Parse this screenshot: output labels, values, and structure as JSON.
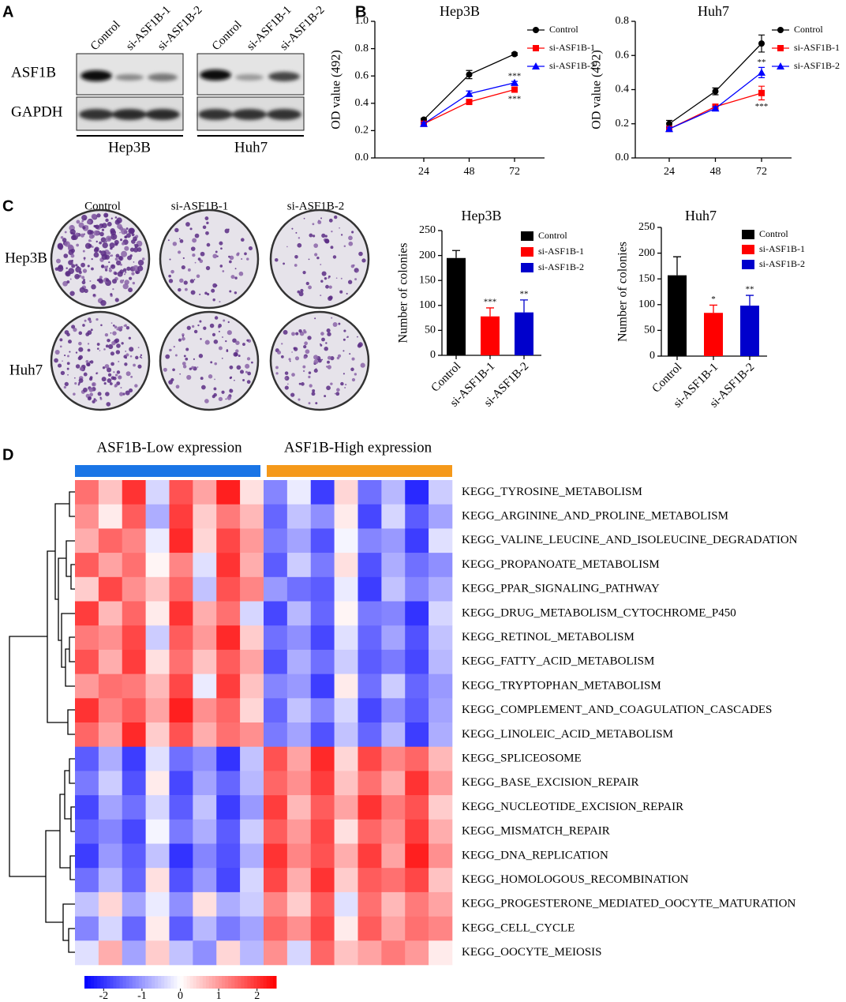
{
  "panel_labels": [
    "A",
    "B",
    "C",
    "D"
  ],
  "blot": {
    "lanes": [
      "Control",
      "si-ASF1B-1",
      "si-ASF1B-2"
    ],
    "proteins": [
      "ASF1B",
      "GAPDH"
    ],
    "cell_lines": [
      "Hep3B",
      "Huh7"
    ]
  },
  "colony": {
    "columns": [
      "Control",
      "si-ASF1B-1",
      "si-ASF1B-2"
    ],
    "rows": [
      "Hep3B",
      "Huh7"
    ]
  },
  "chart_data": [
    {
      "type": "line",
      "title": "Hep3B",
      "y_label": "OD value (492)",
      "categories": [
        "24",
        "48",
        "72"
      ],
      "ylim": [
        0,
        1
      ],
      "yticks": [
        {
          "value": 0,
          "label": "0.0"
        },
        0.2,
        0.4,
        0.6,
        0.8,
        {
          "value": 1,
          "label": "1.0"
        }
      ],
      "legend": "upper right",
      "series": [
        {
          "name": "Control",
          "color": "#000000",
          "marker": "circle",
          "values": [
            0.28,
            0.61,
            0.76
          ],
          "errors": [
            0.01,
            0.03,
            0.01
          ],
          "significance": [
            null,
            null,
            null
          ]
        },
        {
          "name": "si-ASF1B-1",
          "color": "#ff0000",
          "marker": "square",
          "values": [
            0.25,
            0.41,
            0.5
          ],
          "errors": [
            0.01,
            0.01,
            0.02
          ],
          "significance": [
            null,
            null,
            "***"
          ]
        },
        {
          "name": "si-ASF1B-2",
          "color": "#0000ff",
          "marker": "triangle",
          "values": [
            0.25,
            0.47,
            0.55
          ],
          "errors": [
            0.01,
            0.02,
            0.01
          ],
          "significance": [
            null,
            null,
            "***"
          ]
        }
      ]
    },
    {
      "type": "line",
      "title": "Huh7",
      "y_label": "OD value (492)",
      "categories": [
        "24",
        "48",
        "72"
      ],
      "ylim": [
        0,
        0.8
      ],
      "yticks": [
        {
          "value": 0,
          "label": "0.0"
        },
        0.2,
        0.4,
        0.6,
        0.8
      ],
      "legend": "upper right",
      "series": [
        {
          "name": "Control",
          "color": "#000000",
          "marker": "circle",
          "values": [
            0.2,
            0.39,
            0.67
          ],
          "errors": [
            0.02,
            0.02,
            0.05
          ],
          "significance": [
            null,
            null,
            null
          ]
        },
        {
          "name": "si-ASF1B-1",
          "color": "#ff0000",
          "marker": "square",
          "values": [
            0.17,
            0.3,
            0.38
          ],
          "errors": [
            0.01,
            0.01,
            0.04
          ],
          "significance": [
            null,
            null,
            "***"
          ]
        },
        {
          "name": "si-ASF1B-2",
          "color": "#0000ff",
          "marker": "triangle",
          "values": [
            0.17,
            0.29,
            0.5
          ],
          "errors": [
            0.01,
            0.01,
            0.03
          ],
          "significance": [
            null,
            null,
            "**"
          ]
        }
      ]
    },
    {
      "type": "bar",
      "title": "Hep3B",
      "y_label": "Number of colonies",
      "categories": [
        "Control",
        "si-ASF1B-1",
        "si-ASF1B-2"
      ],
      "values": [
        195,
        78,
        86
      ],
      "errors": [
        15,
        17,
        25
      ],
      "colors": [
        "#000000",
        "#ff0000",
        "#0000cc"
      ],
      "significance": [
        null,
        "***",
        "**"
      ],
      "ylim": [
        0,
        250
      ],
      "yticks": [
        0,
        50,
        100,
        150,
        200,
        250
      ],
      "legend": "upper right"
    },
    {
      "type": "bar",
      "title": "Huh7",
      "y_label": "Number of colonies",
      "categories": [
        "Control",
        "si-ASF1B-1",
        "si-ASF1B-2"
      ],
      "values": [
        157,
        84,
        98
      ],
      "errors": [
        36,
        15,
        20
      ],
      "colors": [
        "#000000",
        "#ff0000",
        "#0000cc"
      ],
      "significance": [
        null,
        "*",
        "**"
      ],
      "ylim": [
        0,
        250
      ],
      "yticks": [
        0,
        50,
        100,
        150,
        200,
        250
      ],
      "legend": "upper right"
    },
    {
      "type": "heatmap",
      "groups": [
        {
          "name": "ASF1B-Low expression",
          "color": "#1a75e6"
        },
        {
          "name": "ASF1B-High expression",
          "color": "#f5991a"
        }
      ],
      "rows": [
        "KEGG_TYROSINE_METABOLISM",
        "KEGG_ARGININE_AND_PROLINE_METABOLISM",
        "KEGG_VALINE_LEUCINE_AND_ISOLEUCINE_DEGRADATION",
        "KEGG_PROPANOATE_METABOLISM",
        "KEGG_PPAR_SIGNALING_PATHWAY",
        "KEGG_DRUG_METABOLISM_CYTOCHROME_P450",
        "KEGG_RETINOL_METABOLISM",
        "KEGG_FATTY_ACID_METABOLISM",
        "KEGG_TRYPTOPHAN_METABOLISM",
        "KEGG_COMPLEMENT_AND_COAGULATION_CASCADES",
        "KEGG_LINOLEIC_ACID_METABOLISM",
        "KEGG_SPLICEOSOME",
        "KEGG_BASE_EXCISION_REPAIR",
        "KEGG_NUCLEOTIDE_EXCISION_REPAIR",
        "KEGG_MISMATCH_REPAIR",
        "KEGG_DNA_REPLICATION",
        "KEGG_HOMOLOGOUS_RECOMBINATION",
        "KEGG_PROGESTERONE_MEDIATED_OOCYTE_MATURATION",
        "KEGG_CELL_CYCLE",
        "KEGG_OOCYTE_MEIOSIS"
      ],
      "values": [
        [
          1.4,
          0.6,
          2.0,
          -0.4,
          1.7,
          0.9,
          2.2,
          0.3,
          -1.2,
          -0.2,
          -1.9,
          0.4,
          -1.4,
          -0.7,
          -2.1,
          -0.5
        ],
        [
          1.1,
          0.2,
          1.6,
          -0.8,
          1.9,
          0.5,
          1.3,
          0.7,
          -1.5,
          -0.6,
          -1.1,
          0.2,
          -1.8,
          -0.4,
          -1.6,
          -0.9
        ],
        [
          0.8,
          1.5,
          1.2,
          -0.2,
          2.1,
          0.4,
          1.8,
          1.0,
          -1.3,
          -0.9,
          -1.7,
          -0.1,
          -1.2,
          -1.0,
          -1.9,
          -0.3
        ],
        [
          1.6,
          0.9,
          1.4,
          0.1,
          1.2,
          -0.3,
          2.0,
          0.8,
          -1.6,
          -0.5,
          -1.3,
          0.3,
          -1.7,
          -0.8,
          -1.4,
          -1.1
        ],
        [
          0.5,
          1.8,
          1.1,
          0.6,
          1.5,
          -0.6,
          1.7,
          1.2,
          -1.0,
          -1.4,
          -1.6,
          -0.2,
          -1.9,
          -0.6,
          -1.2,
          -0.8
        ],
        [
          1.9,
          0.7,
          1.5,
          0.2,
          2.0,
          0.8,
          1.4,
          -0.4,
          -1.8,
          -0.7,
          -1.5,
          0.1,
          -1.3,
          -1.2,
          -2.0,
          -0.4
        ],
        [
          1.3,
          1.1,
          1.8,
          -0.5,
          1.6,
          1.0,
          2.1,
          0.5,
          -1.4,
          -1.1,
          -1.8,
          -0.3,
          -1.5,
          -0.9,
          -1.7,
          -0.6
        ],
        [
          1.7,
          0.8,
          1.9,
          0.3,
          1.4,
          0.6,
          1.6,
          0.9,
          -1.7,
          -0.8,
          -1.4,
          -0.5,
          -1.6,
          -1.3,
          -1.8,
          -0.7
        ],
        [
          1.0,
          1.4,
          1.3,
          0.7,
          1.8,
          -0.2,
          1.9,
          0.6,
          -1.2,
          -1.0,
          -1.9,
          0.2,
          -1.4,
          -0.5,
          -1.5,
          -1.0
        ],
        [
          2.0,
          1.2,
          1.6,
          0.9,
          2.2,
          1.1,
          1.5,
          0.4,
          -1.5,
          -0.6,
          -1.2,
          -0.4,
          -1.8,
          -1.1,
          -1.6,
          -0.9
        ],
        [
          1.5,
          0.9,
          2.1,
          0.5,
          1.7,
          0.8,
          1.4,
          1.1,
          -1.3,
          -0.9,
          -1.7,
          -0.6,
          -1.5,
          -0.7,
          -1.9,
          -0.8
        ],
        [
          -1.6,
          -0.8,
          -1.9,
          -0.3,
          -1.4,
          -1.1,
          -2.0,
          -0.6,
          1.7,
          0.9,
          2.1,
          0.4,
          1.8,
          1.2,
          1.5,
          0.7
        ],
        [
          -1.3,
          -0.5,
          -1.7,
          0.2,
          -1.8,
          -0.9,
          -1.5,
          -0.7,
          1.5,
          1.1,
          1.9,
          0.6,
          1.4,
          0.8,
          2.0,
          1.0
        ],
        [
          -1.8,
          -0.9,
          -1.4,
          -0.4,
          -1.6,
          -0.6,
          -1.9,
          -1.0,
          1.9,
          0.7,
          1.6,
          0.9,
          2.0,
          1.3,
          1.7,
          0.5
        ],
        [
          -1.5,
          -1.2,
          -1.8,
          -0.1,
          -1.3,
          -0.8,
          -1.6,
          -0.5,
          1.6,
          1.0,
          1.8,
          0.3,
          1.5,
          1.1,
          1.9,
          0.8
        ],
        [
          -1.9,
          -1.0,
          -1.6,
          -0.6,
          -2.0,
          -1.2,
          -1.7,
          -0.8,
          2.0,
          1.2,
          1.7,
          0.8,
          1.9,
          0.9,
          2.2,
          1.1
        ],
        [
          -1.4,
          -0.7,
          -1.5,
          0.3,
          -1.7,
          -1.0,
          -1.8,
          -0.4,
          1.8,
          0.8,
          2.0,
          0.5,
          1.6,
          1.4,
          1.8,
          0.6
        ],
        [
          -0.6,
          0.4,
          -0.9,
          -0.2,
          -1.1,
          0.3,
          -0.8,
          -0.5,
          1.2,
          0.5,
          1.6,
          -0.3,
          1.4,
          0.7,
          1.3,
          0.9
        ],
        [
          -1.2,
          -0.4,
          -1.5,
          0.2,
          -1.6,
          -0.7,
          -1.3,
          -0.9,
          1.5,
          1.1,
          1.8,
          0.2,
          1.6,
          0.9,
          1.4,
          1.2
        ],
        [
          -0.3,
          0.8,
          -0.9,
          0.5,
          -0.6,
          -1.1,
          0.4,
          -0.7,
          1.1,
          -0.4,
          1.5,
          0.6,
          0.9,
          1.3,
          1.0,
          0.2
        ]
      ],
      "clim": [
        -2.5,
        2.5
      ],
      "colorbar_ticks": [
        -2,
        -1,
        0,
        1,
        2
      ],
      "colors": [
        "#0000ff",
        "#ffffff",
        "#ff0000"
      ]
    }
  ]
}
